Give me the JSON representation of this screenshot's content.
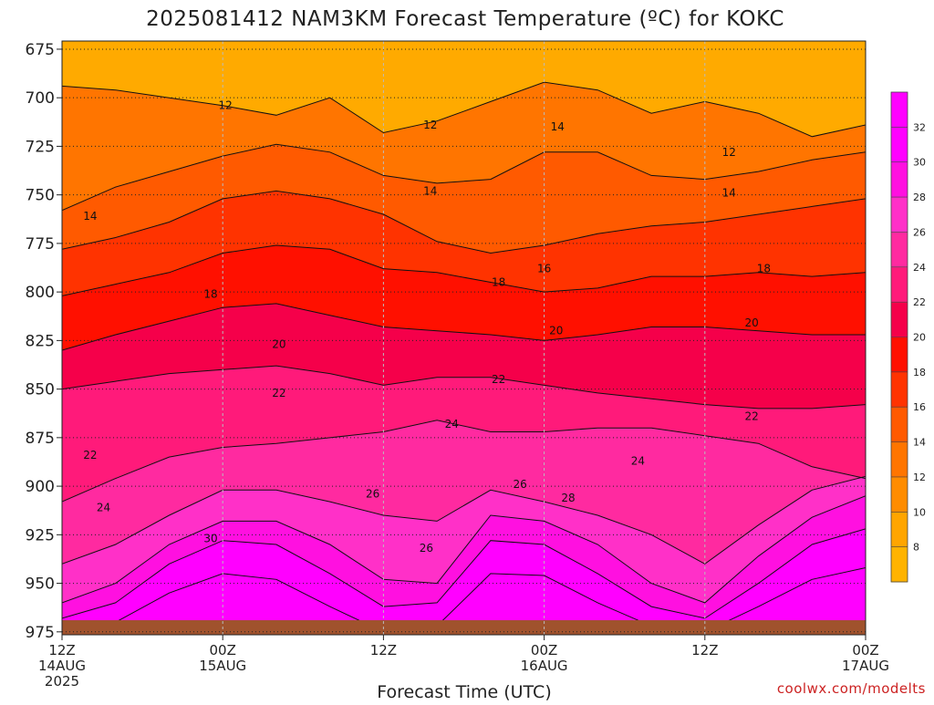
{
  "chart_data": {
    "type": "heatmap",
    "title": "2025081412 NAM3KM Forecast Temperature (ºC) for KOKC",
    "xlabel": "Forecast Time (UTC)",
    "credit": "coolwx.com/modelts",
    "x_ticks": [
      {
        "hours": 0,
        "line1": "12Z",
        "line2": "14AUG",
        "line3": "2025"
      },
      {
        "hours": 12,
        "line1": "00Z",
        "line2": "15AUG",
        "line3": ""
      },
      {
        "hours": 24,
        "line1": "12Z",
        "line2": "",
        "line3": ""
      },
      {
        "hours": 36,
        "line1": "00Z",
        "line2": "16AUG",
        "line3": ""
      },
      {
        "hours": 48,
        "line1": "12Z",
        "line2": "",
        "line3": ""
      },
      {
        "hours": 60,
        "line1": "00Z",
        "line2": "17AUG",
        "line3": ""
      }
    ],
    "x_range_hours": [
      0,
      60
    ],
    "y_ticks": [
      675,
      700,
      725,
      750,
      775,
      800,
      825,
      850,
      875,
      900,
      925,
      950,
      975
    ],
    "y_range_hPa": [
      675,
      975
    ],
    "colorbar": {
      "levels": [
        8,
        10,
        12,
        14,
        16,
        18,
        20,
        22,
        24,
        26,
        28,
        30,
        32
      ],
      "colors": [
        "#ffb300",
        "#ffa500",
        "#ff8c00",
        "#ff7500",
        "#ff5a00",
        "#ff3300",
        "#ff1000",
        "#f5004a",
        "#ff1a7a",
        "#ff2aa0",
        "#ff30c8",
        "#ff10e0",
        "#ff00ff",
        "#ff00ff"
      ]
    },
    "isotherms": [
      {
        "value": 12,
        "pressure": [
          694,
          696,
          700,
          704,
          709,
          700,
          718,
          712,
          702,
          692,
          696,
          708,
          702,
          708,
          720,
          714
        ]
      },
      {
        "value": 14,
        "pressure": [
          758,
          746,
          738,
          730,
          724,
          728,
          740,
          744,
          742,
          728,
          728,
          740,
          742,
          738,
          732,
          728
        ]
      },
      {
        "value": 16,
        "pressure": [
          778,
          772,
          764,
          752,
          748,
          752,
          760,
          774,
          780,
          776,
          770,
          766,
          764,
          760,
          756,
          752
        ]
      },
      {
        "value": 18,
        "pressure": [
          802,
          796,
          790,
          780,
          776,
          778,
          788,
          790,
          795,
          800,
          798,
          792,
          792,
          790,
          792,
          790
        ]
      },
      {
        "value": 20,
        "pressure": [
          830,
          822,
          815,
          808,
          806,
          812,
          818,
          820,
          822,
          825,
          822,
          818,
          818,
          820,
          822,
          822
        ]
      },
      {
        "value": 22,
        "pressure": [
          850,
          846,
          842,
          840,
          838,
          842,
          848,
          844,
          844,
          848,
          852,
          855,
          858,
          860,
          860,
          858
        ]
      },
      {
        "value": 24,
        "pressure": [
          908,
          896,
          885,
          880,
          878,
          875,
          872,
          866,
          872,
          872,
          870,
          870,
          874,
          878,
          890,
          896
        ]
      },
      {
        "value": 26,
        "pressure": [
          940,
          930,
          915,
          902,
          902,
          908,
          915,
          918,
          902,
          908,
          915,
          925,
          940,
          920,
          902,
          895
        ]
      },
      {
        "value": 28,
        "pressure": [
          960,
          950,
          930,
          918,
          918,
          930,
          948,
          950,
          915,
          918,
          930,
          950,
          960,
          936,
          916,
          905
        ]
      },
      {
        "value": 30,
        "pressure": [
          968,
          960,
          940,
          928,
          930,
          945,
          962,
          960,
          928,
          930,
          945,
          962,
          968,
          950,
          930,
          922
        ]
      },
      {
        "value": 32,
        "pressure": [
          975,
          970,
          955,
          945,
          948,
          962,
          975,
          972,
          945,
          946,
          960,
          972,
          975,
          962,
          948,
          942
        ]
      }
    ],
    "contour_labels": [
      {
        "text": "12",
        "hours": 12.2,
        "hPa": 704
      },
      {
        "text": "12",
        "hours": 27.5,
        "hPa": 714
      },
      {
        "text": "12",
        "hours": 49.8,
        "hPa": 728
      },
      {
        "text": "14",
        "hours": 2.1,
        "hPa": 761
      },
      {
        "text": "14",
        "hours": 27.5,
        "hPa": 748
      },
      {
        "text": "14",
        "hours": 37.0,
        "hPa": 715
      },
      {
        "text": "14",
        "hours": 49.8,
        "hPa": 749
      },
      {
        "text": "16",
        "hours": 36.0,
        "hPa": 788
      },
      {
        "text": "18",
        "hours": 11.1,
        "hPa": 801
      },
      {
        "text": "18",
        "hours": 32.6,
        "hPa": 795
      },
      {
        "text": "18",
        "hours": 52.4,
        "hPa": 788
      },
      {
        "text": "20",
        "hours": 16.2,
        "hPa": 827
      },
      {
        "text": "20",
        "hours": 36.9,
        "hPa": 820
      },
      {
        "text": "20",
        "hours": 51.5,
        "hPa": 816
      },
      {
        "text": "22",
        "hours": 16.2,
        "hPa": 852
      },
      {
        "text": "22",
        "hours": 32.6,
        "hPa": 845
      },
      {
        "text": "22",
        "hours": 51.5,
        "hPa": 864
      },
      {
        "text": "22",
        "hours": 2.1,
        "hPa": 884
      },
      {
        "text": "24",
        "hours": 29.1,
        "hPa": 868
      },
      {
        "text": "24",
        "hours": 43.0,
        "hPa": 887
      },
      {
        "text": "24",
        "hours": 3.1,
        "hPa": 911
      },
      {
        "text": "26",
        "hours": 23.2,
        "hPa": 904
      },
      {
        "text": "26",
        "hours": 34.2,
        "hPa": 899
      },
      {
        "text": "26",
        "hours": 27.2,
        "hPa": 932
      },
      {
        "text": "28",
        "hours": 37.8,
        "hPa": 906
      },
      {
        "text": "30",
        "hours": 11.1,
        "hPa": 927
      }
    ],
    "surface_pressure_hPa": 969,
    "grid": true,
    "legend_placement": "right"
  }
}
